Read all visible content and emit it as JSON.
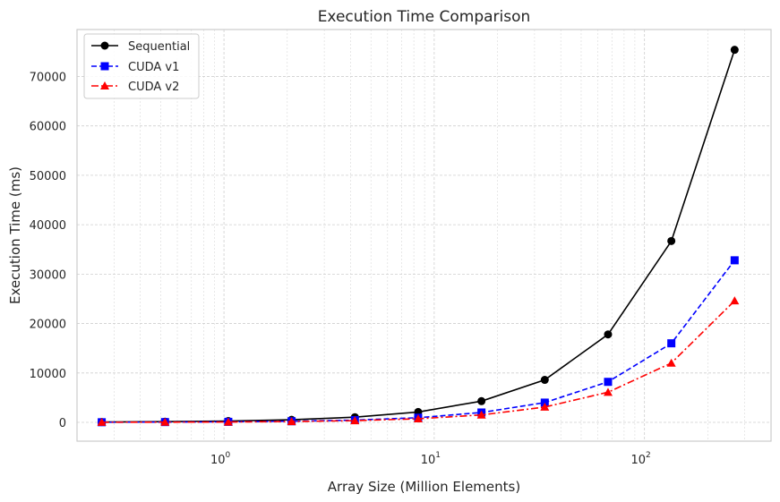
{
  "chart_data": {
    "type": "line",
    "title": "Execution Time Comparison",
    "xlabel": "Array Size (Million Elements)",
    "ylabel": "Execution Time (ms)",
    "x_scale": "log",
    "xlim": [
      0.2,
      400
    ],
    "ylim": [
      -3800,
      79500
    ],
    "grid": true,
    "legend_position": "top-left",
    "x_tick_labels": [
      {
        "value": 1,
        "base": "10",
        "exp": "0"
      },
      {
        "value": 10,
        "base": "10",
        "exp": "1"
      },
      {
        "value": 100,
        "base": "10",
        "exp": "2"
      }
    ],
    "y_ticks": [
      0,
      10000,
      20000,
      30000,
      40000,
      50000,
      60000,
      70000
    ],
    "y_tick_labels": [
      "0",
      "10000",
      "20000",
      "30000",
      "40000",
      "50000",
      "60000",
      "70000"
    ],
    "x": [
      0.262144,
      0.524288,
      1.048576,
      2.097152,
      4.194304,
      8.388608,
      16.777216,
      33.554432,
      67.108864,
      134.217728,
      268.435456
    ],
    "series": [
      {
        "name": "Sequential",
        "color": "#000000",
        "marker": "circle",
        "dash": "solid",
        "values": [
          70,
          140,
          270,
          520,
          1050,
          2100,
          4300,
          8600,
          17800,
          36700,
          75400
        ]
      },
      {
        "name": "CUDA v1",
        "color": "#0000ff",
        "marker": "square",
        "dash": "dashed",
        "values": [
          30,
          60,
          110,
          230,
          460,
          950,
          2000,
          4000,
          8200,
          16000,
          32800
        ]
      },
      {
        "name": "CUDA v2",
        "color": "#ff0000",
        "marker": "triangle",
        "dash": "dashdot",
        "values": [
          20,
          40,
          80,
          160,
          340,
          720,
          1500,
          3100,
          6100,
          12000,
          24600
        ]
      }
    ]
  }
}
